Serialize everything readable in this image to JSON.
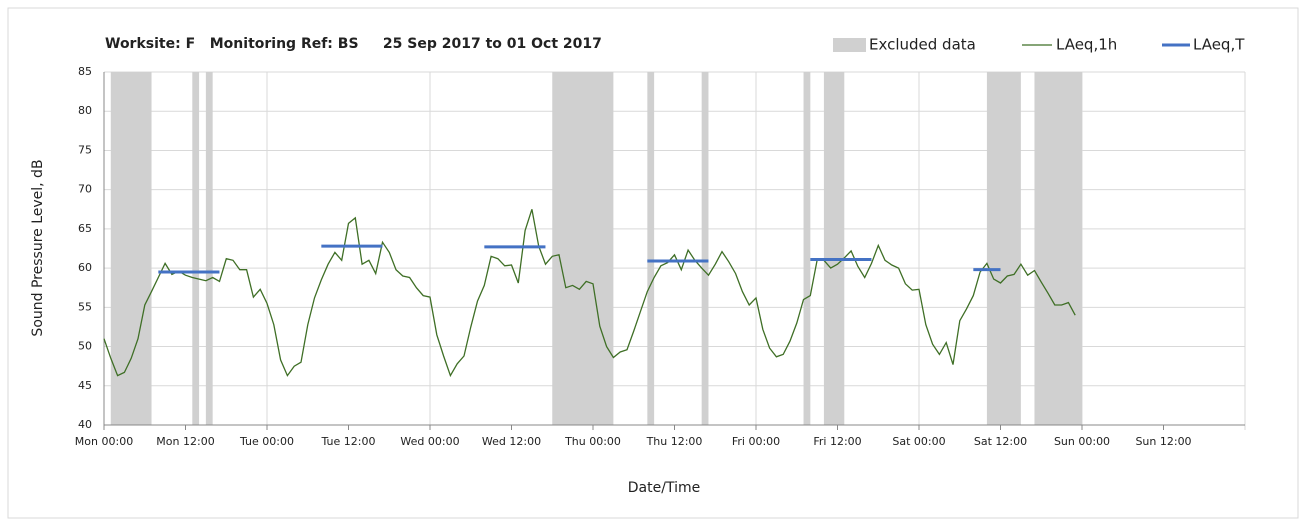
{
  "chart_data": {
    "type": "line",
    "title": "Worksite: F   Monitoring Ref: BS     25 Sep 2017 to 01 Oct 2017",
    "xlabel": "Date/Time",
    "ylabel": "Sound Pressure Level, dB",
    "xlim": [
      0,
      168
    ],
    "ylim": [
      40,
      85
    ],
    "xticks": [
      {
        "value": 0,
        "label": "Mon 00:00"
      },
      {
        "value": 12,
        "label": "Mon 12:00"
      },
      {
        "value": 24,
        "label": "Tue 00:00"
      },
      {
        "value": 36,
        "label": "Tue 12:00"
      },
      {
        "value": 48,
        "label": "Wed 00:00"
      },
      {
        "value": 60,
        "label": "Wed 12:00"
      },
      {
        "value": 72,
        "label": "Thu 00:00"
      },
      {
        "value": 84,
        "label": "Thu 12:00"
      },
      {
        "value": 96,
        "label": "Fri 00:00"
      },
      {
        "value": 108,
        "label": "Fri 12:00"
      },
      {
        "value": 120,
        "label": "Sat 00:00"
      },
      {
        "value": 132,
        "label": "Sat 12:00"
      },
      {
        "value": 144,
        "label": "Sun 00:00"
      },
      {
        "value": 156,
        "label": "Sun 12:00"
      }
    ],
    "yticks": [
      40,
      45,
      50,
      55,
      60,
      65,
      70,
      75,
      80,
      85
    ],
    "grid": true,
    "legend": "top-right",
    "excluded": {
      "name": "Excluded data",
      "color": "#d0d0d0",
      "ranges": [
        [
          1,
          7
        ],
        [
          13,
          14
        ],
        [
          15,
          16
        ],
        [
          66,
          75
        ],
        [
          80,
          81
        ],
        [
          88,
          89
        ],
        [
          103,
          104
        ],
        [
          106,
          109
        ],
        [
          130,
          135
        ],
        [
          137,
          144
        ]
      ]
    },
    "series": [
      {
        "name": "LAeq,1h",
        "color": "#3f6f26",
        "x": [
          0,
          1,
          2,
          3,
          4,
          5,
          6,
          7,
          8,
          9,
          10,
          11,
          12,
          13,
          14,
          15,
          16,
          17,
          18,
          19,
          20,
          21,
          22,
          23,
          24,
          25,
          26,
          27,
          28,
          29,
          30,
          31,
          32,
          33,
          34,
          35,
          36,
          37,
          38,
          39,
          40,
          41,
          42,
          43,
          44,
          45,
          46,
          47,
          48,
          49,
          50,
          51,
          52,
          53,
          54,
          55,
          56,
          57,
          58,
          59,
          60,
          61,
          62,
          63,
          64,
          65,
          66,
          67,
          68,
          69,
          70,
          71,
          72,
          73,
          74,
          75,
          76,
          77,
          78,
          79,
          80,
          81,
          82,
          83,
          84,
          85,
          86,
          87,
          88,
          89,
          90,
          91,
          92,
          93,
          94,
          95,
          96,
          97,
          98,
          99,
          100,
          101,
          102,
          103,
          104,
          105,
          106,
          107,
          108,
          109,
          110,
          111,
          112,
          113,
          114,
          115,
          116,
          117,
          118,
          119,
          120,
          121,
          122,
          123,
          124,
          125,
          126,
          127,
          128,
          129,
          130,
          131,
          132,
          133,
          134,
          135,
          136,
          137,
          138,
          139,
          140,
          141,
          142,
          143
        ],
        "values": [
          51,
          48.5,
          46.3,
          46.7,
          48.5,
          51,
          55.3,
          57,
          58.8,
          60.6,
          59.2,
          59.6,
          59.1,
          58.8,
          58.6,
          58.4,
          58.8,
          58.3,
          61.2,
          61,
          59.8,
          59.8,
          56.3,
          57.3,
          55.5,
          52.8,
          48.3,
          46.3,
          47.5,
          48,
          52.8,
          56.2,
          58.5,
          60.5,
          62,
          61,
          65.7,
          66.4,
          60.5,
          61,
          59.3,
          63.3,
          62,
          59.8,
          59,
          58.8,
          57.5,
          56.5,
          56.3,
          51.5,
          48.8,
          46.3,
          47.8,
          48.8,
          52.5,
          55.8,
          57.8,
          61.5,
          61.2,
          60.3,
          60.4,
          58.1,
          64.8,
          67.5,
          62.8,
          60.5,
          61.5,
          61.7,
          57.5,
          57.8,
          57.3,
          58.3,
          58,
          52.6,
          50,
          48.6,
          49.3,
          49.6,
          52,
          54.5,
          57,
          58.8,
          60.3,
          60.7,
          61.7,
          59.8,
          62.3,
          61,
          60,
          59.1,
          60.5,
          62.1,
          60.8,
          59.3,
          57,
          55.3,
          56.2,
          52.2,
          49.8,
          48.7,
          49,
          50.7,
          53,
          56,
          56.5,
          61,
          61,
          60,
          60.5,
          61.3,
          62.2,
          60.2,
          58.8,
          60.6,
          62.9,
          61,
          60.4,
          60,
          58,
          57.2,
          57.3,
          52.8,
          50.3,
          49,
          50.5,
          47.7,
          53.3,
          54.8,
          56.5,
          59.5,
          60.6,
          58.6,
          58.1,
          59,
          59.2,
          60.5,
          59.1,
          59.7,
          58.2,
          56.8,
          55.3,
          55.3,
          55.6,
          54
        ]
      },
      {
        "name": "LAeq,T",
        "color": "#4472c4",
        "segments": [
          {
            "x": [
              8,
              17
            ],
            "value": 59.5
          },
          {
            "x": [
              32,
              41
            ],
            "value": 62.8
          },
          {
            "x": [
              56,
              65
            ],
            "value": 62.7
          },
          {
            "x": [
              80,
              89
            ],
            "value": 60.9
          },
          {
            "x": [
              104,
              113
            ],
            "value": 61.1
          },
          {
            "x": [
              128,
              132
            ],
            "value": 59.8
          }
        ]
      }
    ]
  }
}
